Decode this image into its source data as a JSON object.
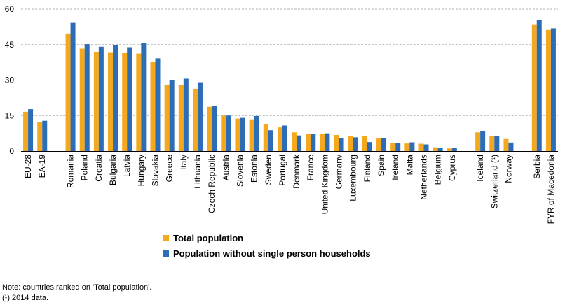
{
  "chart_data": {
    "type": "bar",
    "title": "",
    "xlabel": "",
    "ylabel": "",
    "ylim": [
      0,
      60
    ],
    "yticks": [
      0,
      15,
      30,
      45,
      60
    ],
    "grid": "horizontal dashed",
    "legend_position": "bottom",
    "colors": {
      "total": "#F4A81D",
      "without_single": "#2C6DB5",
      "grid": "#B0B0B0",
      "axis": "#000000"
    },
    "categories": [
      "EU-28",
      "EA-19",
      "",
      "Romania",
      "Poland",
      "Croatia",
      "Bulgaria",
      "Latvia",
      "Hungary",
      "Slovakia",
      "Greece",
      "Italy",
      "Lithuania",
      "Czech Republic",
      "Austria",
      "Slovenia",
      "Estonia",
      "Sweden",
      "Portugal",
      "Denmark",
      "France",
      "United Kingdom",
      "Germany",
      "Luxembourg",
      "Finland",
      "Spain",
      "Ireland",
      "Malta",
      "Netherlands",
      "Belgium",
      "Cyprus",
      "",
      "Iceland",
      "Switzerland (¹)",
      "Norway",
      "",
      "Serbia",
      "FYR of Macedonia"
    ],
    "series": [
      {
        "name": "Total population",
        "values": [
          16.6,
          12.1,
          null,
          49.7,
          43.3,
          41.7,
          41.5,
          41.4,
          41.2,
          37.6,
          28.1,
          27.8,
          26.3,
          18.7,
          15.0,
          13.7,
          13.4,
          11.5,
          10.0,
          7.9,
          7.1,
          7.1,
          6.8,
          6.5,
          6.5,
          5.3,
          3.3,
          3.2,
          3.1,
          1.6,
          1.1,
          null,
          7.9,
          6.5,
          5.1,
          null,
          53.3,
          51.2
        ]
      },
      {
        "name": "Population without single person households",
        "values": [
          17.7,
          12.8,
          null,
          54.2,
          45.2,
          44.1,
          44.9,
          43.9,
          45.6,
          39.2,
          29.9,
          30.6,
          29.1,
          19.1,
          15.0,
          14.0,
          14.8,
          8.8,
          10.8,
          6.6,
          7.1,
          7.5,
          5.5,
          5.8,
          3.8,
          5.6,
          3.3,
          3.7,
          2.8,
          1.3,
          1.2,
          null,
          8.3,
          6.4,
          3.6,
          null,
          55.4,
          51.9
        ]
      }
    ]
  },
  "notes": {
    "line1": "Note: countries ranked on 'Total population'.",
    "line2": "(¹) 2014 data."
  }
}
